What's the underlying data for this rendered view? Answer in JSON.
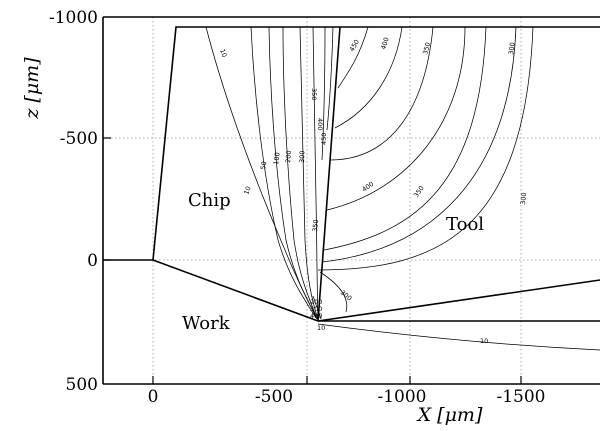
{
  "chart_data": {
    "type": "contour",
    "x_axis": {
      "label": "X [μm]",
      "ticks": [
        {
          "value": 0,
          "label": "0"
        },
        {
          "value": -500,
          "label": "-500"
        },
        {
          "value": -1000,
          "label": "-1000"
        },
        {
          "value": -1500,
          "label": "-1500"
        }
      ]
    },
    "z_axis": {
      "label": "z [μm]",
      "ticks": [
        {
          "value": -1000,
          "label": "-1000"
        },
        {
          "value": -500,
          "label": "-500"
        },
        {
          "value": 0,
          "label": "0"
        },
        {
          "value": 500,
          "label": "500"
        }
      ]
    },
    "grid": true,
    "regions": [
      {
        "name": "chip",
        "label": "Chip"
      },
      {
        "name": "tool",
        "label": "Tool"
      },
      {
        "name": "work",
        "label": "Work"
      }
    ],
    "contour_labels": [
      "10",
      "50",
      "100",
      "200",
      "300",
      "350",
      "400",
      "450",
      "450",
      "400",
      "350",
      "300",
      "400",
      "350",
      "300",
      "300",
      "350",
      "10",
      "10",
      "200",
      "300",
      "400",
      "10"
    ]
  }
}
